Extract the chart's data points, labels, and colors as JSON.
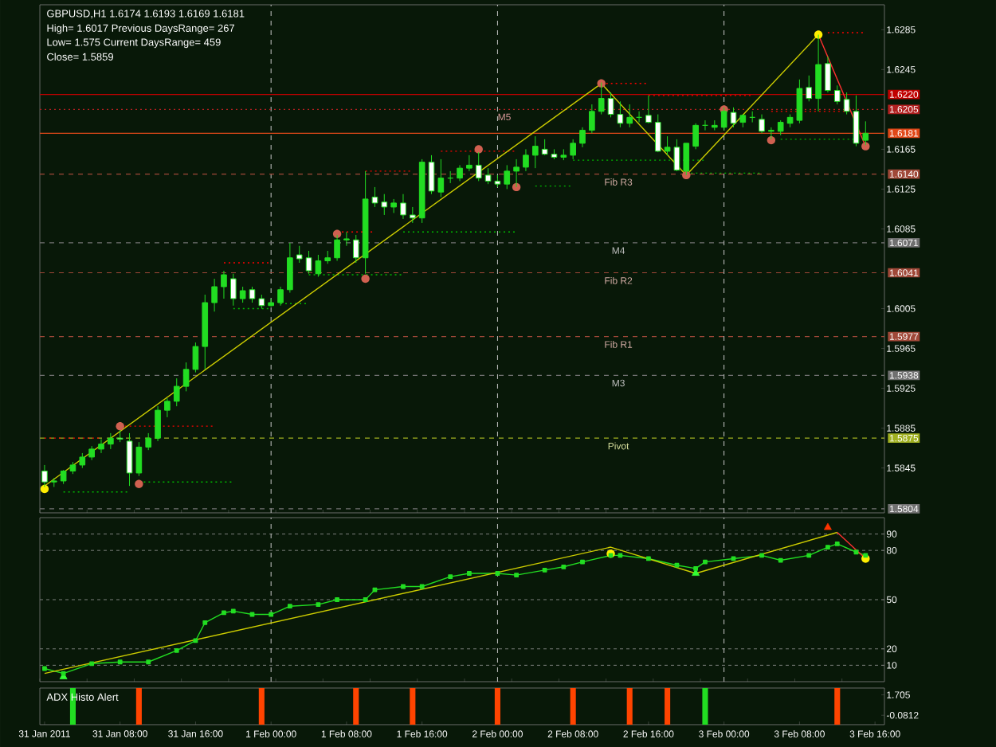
{
  "chart_data": [
    {
      "type": "candlestick",
      "title": "GBPUSD,H1  1.6174 1.6193 1.6169 1.6181",
      "annotations": [
        "High= 1.6017 Previous DaysRange= 267",
        "Low= 1.575 Current DaysRange= 459",
        "Close= 1.5859"
      ],
      "color": "#22dd22",
      "x": [
        "2011-01-31T00:00",
        "2011-01-31T01:00",
        "2011-01-31T02:00",
        "2011-01-31T03:00",
        "2011-01-31T04:00",
        "2011-01-31T05:00",
        "2011-01-31T06:00",
        "2011-01-31T07:00",
        "2011-01-31T08:00",
        "2011-01-31T09:00",
        "2011-01-31T10:00",
        "2011-01-31T11:00",
        "2011-01-31T12:00",
        "2011-01-31T13:00",
        "2011-01-31T14:00",
        "2011-01-31T15:00",
        "2011-01-31T16:00",
        "2011-01-31T17:00",
        "2011-01-31T18:00",
        "2011-01-31T19:00",
        "2011-01-31T20:00",
        "2011-01-31T21:00",
        "2011-01-31T22:00",
        "2011-01-31T23:00",
        "2011-02-01T00:00",
        "2011-02-01T01:00",
        "2011-02-01T02:00",
        "2011-02-01T03:00",
        "2011-02-01T04:00",
        "2011-02-01T05:00",
        "2011-02-01T06:00",
        "2011-02-01T07:00",
        "2011-02-01T08:00",
        "2011-02-01T09:00",
        "2011-02-01T10:00",
        "2011-02-01T11:00",
        "2011-02-01T12:00",
        "2011-02-01T13:00",
        "2011-02-01T14:00",
        "2011-02-01T15:00",
        "2011-02-01T16:00",
        "2011-02-01T17:00",
        "2011-02-01T18:00",
        "2011-02-01T19:00",
        "2011-02-01T20:00",
        "2011-02-01T21:00",
        "2011-02-01T22:00",
        "2011-02-01T23:00",
        "2011-02-02T00:00",
        "2011-02-02T01:00",
        "2011-02-02T02:00",
        "2011-02-02T03:00",
        "2011-02-02T04:00",
        "2011-02-02T05:00",
        "2011-02-02T06:00",
        "2011-02-02T07:00",
        "2011-02-02T08:00",
        "2011-02-02T09:00",
        "2011-02-02T10:00",
        "2011-02-02T11:00",
        "2011-02-02T12:00",
        "2011-02-02T13:00",
        "2011-02-02T14:00",
        "2011-02-02T15:00",
        "2011-02-02T16:00",
        "2011-02-02T17:00",
        "2011-02-02T18:00",
        "2011-02-02T19:00",
        "2011-02-02T20:00",
        "2011-02-02T21:00",
        "2011-02-02T22:00",
        "2011-02-02T23:00",
        "2011-02-03T00:00",
        "2011-02-03T01:00",
        "2011-02-03T02:00",
        "2011-02-03T03:00",
        "2011-02-03T04:00",
        "2011-02-03T05:00",
        "2011-02-03T06:00",
        "2011-02-03T07:00",
        "2011-02-03T08:00",
        "2011-02-03T09:00",
        "2011-02-03T10:00",
        "2011-02-03T11:00",
        "2011-02-03T12:00",
        "2011-02-03T13:00",
        "2011-02-03T14:00",
        "2011-02-03T15:00"
      ],
      "ohlc": [
        [
          1.5842,
          1.5848,
          1.5826,
          1.5831
        ],
        [
          1.5831,
          1.5835,
          1.5826,
          1.5832
        ],
        [
          1.5832,
          1.5843,
          1.5829,
          1.5842
        ],
        [
          1.5842,
          1.5851,
          1.5839,
          1.5848
        ],
        [
          1.5848,
          1.586,
          1.5845,
          1.5856
        ],
        [
          1.5856,
          1.5867,
          1.5853,
          1.5864
        ],
        [
          1.5864,
          1.5874,
          1.586,
          1.5869
        ],
        [
          1.5869,
          1.588,
          1.5864,
          1.5875
        ],
        [
          1.5875,
          1.5883,
          1.5871,
          1.5874
        ],
        [
          1.5872,
          1.588,
          1.5827,
          1.584
        ],
        [
          1.584,
          1.5871,
          1.5837,
          1.5866
        ],
        [
          1.5866,
          1.588,
          1.5863,
          1.5875
        ],
        [
          1.5875,
          1.5907,
          1.5872,
          1.5903
        ],
        [
          1.5903,
          1.5915,
          1.5896,
          1.5912
        ],
        [
          1.5912,
          1.5935,
          1.5907,
          1.5927
        ],
        [
          1.5927,
          1.5951,
          1.5922,
          1.5944
        ],
        [
          1.5944,
          1.5971,
          1.5941,
          1.5967
        ],
        [
          1.5967,
          1.6019,
          1.5944,
          1.6011
        ],
        [
          1.6011,
          1.6035,
          1.6002,
          1.6027
        ],
        [
          1.6027,
          1.6043,
          1.6015,
          1.6039
        ],
        [
          1.6035,
          1.604,
          1.6008,
          1.6015
        ],
        [
          1.6015,
          1.6027,
          1.6011,
          1.6023
        ],
        [
          1.6024,
          1.6027,
          1.6011,
          1.6015
        ],
        [
          1.6015,
          1.6019,
          1.6005,
          1.6008
        ],
        [
          1.6008,
          1.6015,
          1.6007,
          1.6011
        ],
        [
          1.6011,
          1.6027,
          1.6008,
          1.6024
        ],
        [
          1.6024,
          1.6071,
          1.6021,
          1.6056
        ],
        [
          1.6059,
          1.6068,
          1.6051,
          1.6055
        ],
        [
          1.6056,
          1.6063,
          1.604,
          1.6043
        ],
        [
          1.604,
          1.6059,
          1.6037,
          1.6053
        ],
        [
          1.6053,
          1.6063,
          1.605,
          1.6056
        ],
        [
          1.6056,
          1.6079,
          1.6053,
          1.6074
        ],
        [
          1.6074,
          1.6082,
          1.6068,
          1.6075
        ],
        [
          1.6074,
          1.6079,
          1.6051,
          1.6056
        ],
        [
          1.6056,
          1.6143,
          1.604,
          1.6115
        ],
        [
          1.6117,
          1.6127,
          1.6107,
          1.6111
        ],
        [
          1.6112,
          1.612,
          1.6099,
          1.6107
        ],
        [
          1.6107,
          1.6115,
          1.6101,
          1.6111
        ],
        [
          1.6111,
          1.612,
          1.6095,
          1.6099
        ],
        [
          1.6099,
          1.6107,
          1.6091,
          1.6096
        ],
        [
          1.6096,
          1.6155,
          1.6091,
          1.6152
        ],
        [
          1.6152,
          1.6159,
          1.612,
          1.6123
        ],
        [
          1.6122,
          1.6155,
          1.6117,
          1.6136
        ],
        [
          1.6136,
          1.6143,
          1.6131,
          1.6136
        ],
        [
          1.6136,
          1.6149,
          1.6133,
          1.6146
        ],
        [
          1.6146,
          1.6159,
          1.6143,
          1.6149
        ],
        [
          1.6149,
          1.6162,
          1.6133,
          1.6136
        ],
        [
          1.6139,
          1.6146,
          1.613,
          1.6133
        ],
        [
          1.6133,
          1.6139,
          1.6127,
          1.613
        ],
        [
          1.613,
          1.6149,
          1.6125,
          1.6143
        ],
        [
          1.6143,
          1.6155,
          1.6127,
          1.6147
        ],
        [
          1.6147,
          1.6165,
          1.6143,
          1.6159
        ],
        [
          1.6159,
          1.6178,
          1.6146,
          1.6168
        ],
        [
          1.6165,
          1.6175,
          1.6159,
          1.616
        ],
        [
          1.616,
          1.6165,
          1.6155,
          1.6157
        ],
        [
          1.6157,
          1.6165,
          1.6154,
          1.6159
        ],
        [
          1.6159,
          1.6175,
          1.6155,
          1.6171
        ],
        [
          1.6171,
          1.6187,
          1.6167,
          1.6184
        ],
        [
          1.6184,
          1.621,
          1.6181,
          1.6203
        ],
        [
          1.6203,
          1.6232,
          1.62,
          1.6216
        ],
        [
          1.6216,
          1.6222,
          1.6197,
          1.62
        ],
        [
          1.62,
          1.6213,
          1.6187,
          1.6191
        ],
        [
          1.6191,
          1.621,
          1.6187,
          1.6197
        ],
        [
          1.6197,
          1.6203,
          1.6192,
          1.6197
        ],
        [
          1.6199,
          1.6219,
          1.6191,
          1.6192
        ],
        [
          1.6192,
          1.62,
          1.6162,
          1.6163
        ],
        [
          1.6163,
          1.6178,
          1.6159,
          1.6167
        ],
        [
          1.6167,
          1.6175,
          1.6143,
          1.6144
        ],
        [
          1.6143,
          1.6171,
          1.6139,
          1.6171
        ],
        [
          1.6168,
          1.6191,
          1.6165,
          1.6189
        ],
        [
          1.6189,
          1.6194,
          1.6184,
          1.6189
        ],
        [
          1.6187,
          1.6194,
          1.6184,
          1.6189
        ],
        [
          1.6187,
          1.6207,
          1.6184,
          1.6203
        ],
        [
          1.6202,
          1.6207,
          1.6187,
          1.6191
        ],
        [
          1.6192,
          1.62,
          1.6187,
          1.6199
        ],
        [
          1.6197,
          1.6203,
          1.6192,
          1.6197
        ],
        [
          1.6195,
          1.62,
          1.6181,
          1.6183
        ],
        [
          1.6183,
          1.6187,
          1.6175,
          1.6184
        ],
        [
          1.6183,
          1.6194,
          1.6179,
          1.6192
        ],
        [
          1.6191,
          1.62,
          1.6187,
          1.6197
        ],
        [
          1.6194,
          1.6235,
          1.6191,
          1.6226
        ],
        [
          1.6227,
          1.6239,
          1.6213,
          1.6216
        ],
        [
          1.6216,
          1.628,
          1.6203,
          1.625
        ],
        [
          1.6251,
          1.6258,
          1.6222,
          1.6224
        ],
        [
          1.6224,
          1.6229,
          1.621,
          1.6213
        ],
        [
          1.6215,
          1.6222,
          1.62,
          1.6203
        ],
        [
          1.6203,
          1.6219,
          1.6168,
          1.6171
        ],
        [
          1.6174,
          1.6193,
          1.6169,
          1.6181
        ]
      ],
      "xlim": [
        "2011-01-30T23:30",
        "2011-02-03T17:00"
      ],
      "ylim": [
        1.58,
        1.631
      ],
      "yticks": [
        1.6285,
        1.6245,
        {
          "value": 1.622,
          "label": "1.6220"
        },
        1.6205,
        1.6181,
        1.6165,
        {
          "value": 1.614,
          "label": "1.6140"
        },
        1.6125,
        1.6085,
        1.6071,
        1.6041,
        1.6005,
        1.5977,
        1.5965,
        1.5938,
        1.5925,
        1.5885,
        1.5875,
        1.5845,
        1.5804
      ],
      "tick_labels": "y",
      "ref_lines": [
        {
          "axis": "x",
          "value": "2011-02-01T00:00",
          "color": "#c8c8c8",
          "line_style": "dashed"
        },
        {
          "axis": "x",
          "value": "2011-02-02T00:00",
          "color": "#c8c8c8",
          "line_style": "dashed"
        },
        {
          "axis": "x",
          "value": "2011-02-03T00:00",
          "color": "#c8c8c8",
          "line_style": "dashed"
        },
        {
          "axis": "y",
          "value": 1.622,
          "color": "#c00000",
          "line_style": "solid"
        },
        {
          "axis": "y",
          "value": 1.6205,
          "label": "M5",
          "color": "#b02020",
          "line_style": "dotted"
        },
        {
          "axis": "y",
          "value": 1.6181,
          "color": "#e04818",
          "line_style": "solid"
        },
        {
          "axis": "y",
          "value": 1.614,
          "label": "Fib R3",
          "color": "#a04838",
          "line_style": "dashed"
        },
        {
          "axis": "y",
          "value": 1.6071,
          "label": "M4",
          "color": "#707070",
          "line_style": "dashed"
        },
        {
          "axis": "y",
          "value": 1.6041,
          "label": "Fib R2",
          "color": "#a04838",
          "line_style": "dashed"
        },
        {
          "axis": "y",
          "value": 1.5977,
          "label": "Fib R1",
          "color": "#a04838",
          "line_style": "dashed"
        },
        {
          "axis": "y",
          "value": 1.5938,
          "label": "M3",
          "color": "#707070",
          "line_style": "dashed"
        },
        {
          "axis": "y",
          "value": 1.5875,
          "label": "Pivot",
          "color": "#a0b020",
          "line_style": "dashed"
        },
        {
          "axis": "y",
          "value": 1.5804,
          "color": "#707070",
          "line_style": "dashed"
        }
      ],
      "series": [
        {
          "type": "line",
          "color": "#ff0000",
          "line_style": "dotted",
          "x": [
            "2011-01-31T00:00",
            "2011-01-31T06:00"
          ],
          "values": [
            1.5875,
            1.5875
          ]
        },
        {
          "type": "line",
          "color": "#ff0000",
          "line_style": "dotted",
          "x": [
            "2011-01-31T08:00",
            "2011-01-31T18:00"
          ],
          "values": [
            1.5887,
            1.5887
          ]
        },
        {
          "type": "line",
          "color": "#ff0000",
          "line_style": "dotted",
          "x": [
            "2011-01-31T19:00",
            "2011-02-01T00:00"
          ],
          "values": [
            1.6051,
            1.6051
          ]
        },
        {
          "type": "line",
          "color": "#ff0000",
          "line_style": "dotted",
          "x": [
            "2011-02-01T07:00",
            "2011-02-01T11:00"
          ],
          "values": [
            1.6082,
            1.6082
          ]
        },
        {
          "type": "line",
          "color": "#ff0000",
          "line_style": "dotted",
          "x": [
            "2011-02-01T10:00",
            "2011-02-01T15:00"
          ],
          "values": [
            1.6143,
            1.6143
          ]
        },
        {
          "type": "line",
          "color": "#ff0000",
          "line_style": "dotted",
          "x": [
            "2011-02-01T18:00",
            "2011-02-02T02:00"
          ],
          "values": [
            1.6163,
            1.6163
          ]
        },
        {
          "type": "line",
          "color": "#ff0000",
          "line_style": "dotted",
          "x": [
            "2011-02-02T11:00",
            "2011-02-02T16:00"
          ],
          "values": [
            1.6231,
            1.6231
          ]
        },
        {
          "type": "line",
          "color": "#ff0000",
          "line_style": "dotted",
          "x": [
            "2011-02-02T16:00",
            "2011-02-03T03:00"
          ],
          "values": [
            1.6219,
            1.6219
          ]
        },
        {
          "type": "line",
          "color": "#ff0000",
          "line_style": "dotted",
          "x": [
            "2011-02-03T05:00",
            "2011-02-03T13:00"
          ],
          "values": [
            1.6203,
            1.6203
          ]
        },
        {
          "type": "line",
          "color": "#ff0000",
          "line_style": "dotted",
          "x": [
            "2011-02-03T11:00",
            "2011-02-03T15:00"
          ],
          "values": [
            1.6282,
            1.6282
          ]
        },
        {
          "type": "line",
          "color": "#00b800",
          "line_style": "dotted",
          "x": [
            "2011-01-31T02:00",
            "2011-01-31T09:00"
          ],
          "values": [
            1.5821,
            1.5821
          ]
        },
        {
          "type": "line",
          "color": "#00b800",
          "line_style": "dotted",
          "x": [
            "2011-01-31T10:00",
            "2011-01-31T20:00"
          ],
          "values": [
            1.5831,
            1.5831
          ]
        },
        {
          "type": "line",
          "color": "#00b800",
          "line_style": "dotted",
          "x": [
            "2011-01-31T20:00",
            "2011-02-01T00:00"
          ],
          "values": [
            1.6005,
            1.6005
          ]
        },
        {
          "type": "line",
          "color": "#00b800",
          "line_style": "dotted",
          "x": [
            "2011-02-01T01:00",
            "2011-02-01T04:00"
          ],
          "values": [
            1.601,
            1.601
          ]
        },
        {
          "type": "line",
          "color": "#00b800",
          "line_style": "dotted",
          "x": [
            "2011-02-01T04:00",
            "2011-02-01T14:00"
          ],
          "values": [
            1.6039,
            1.6039
          ]
        },
        {
          "type": "line",
          "color": "#00b800",
          "line_style": "dotted",
          "x": [
            "2011-02-01T14:00",
            "2011-02-02T02:00"
          ],
          "values": [
            1.6082,
            1.6082
          ]
        },
        {
          "type": "line",
          "color": "#00b800",
          "line_style": "dotted",
          "x": [
            "2011-02-02T04:00",
            "2011-02-02T08:00"
          ],
          "values": [
            1.6128,
            1.6128
          ]
        },
        {
          "type": "line",
          "color": "#00b800",
          "line_style": "dotted",
          "x": [
            "2011-02-02T08:00",
            "2011-02-02T22:00"
          ],
          "values": [
            1.6154,
            1.6154
          ]
        },
        {
          "type": "line",
          "color": "#00b800",
          "line_style": "dotted",
          "x": [
            "2011-02-02T20:00",
            "2011-02-03T04:00"
          ],
          "values": [
            1.6141,
            1.6141
          ]
        },
        {
          "type": "line",
          "color": "#00b800",
          "line_style": "dotted",
          "x": [
            "2011-02-03T06:00",
            "2011-02-03T14:00"
          ],
          "values": [
            1.6175,
            1.6175
          ]
        },
        {
          "type": "line",
          "color": "#cccc00",
          "x": [
            "2011-01-31T00:00",
            "2011-02-02T11:00",
            "2011-02-02T20:00",
            "2011-02-03T10:00"
          ],
          "values": [
            1.5827,
            1.6231,
            1.6139,
            1.628
          ]
        },
        {
          "type": "line",
          "color": "#ff3030",
          "x": [
            "2011-02-03T10:00",
            "2011-02-03T15:00"
          ],
          "values": [
            1.628,
            1.6168
          ]
        },
        {
          "type": "scatter",
          "color": "#d06050",
          "marker": "circle",
          "x": [
            "2011-01-31T08:00",
            "2011-01-31T10:00",
            "2011-02-01T07:00",
            "2011-02-01T10:00",
            "2011-02-01T22:00",
            "2011-02-02T02:00",
            "2011-02-02T11:00",
            "2011-02-02T20:00",
            "2011-02-03T00:00",
            "2011-02-03T05:00",
            "2011-02-03T15:00"
          ],
          "values": [
            1.5887,
            1.5829,
            1.608,
            1.6035,
            1.6165,
            1.6127,
            1.6231,
            1.6139,
            1.6205,
            1.6174,
            1.6168
          ]
        },
        {
          "type": "scatter",
          "color": "#ffee00",
          "marker": "circle",
          "x": [
            "2011-01-31T00:00",
            "2011-02-03T10:00"
          ],
          "values": [
            1.5824,
            1.628
          ]
        }
      ]
    },
    {
      "type": "line",
      "xlim": [
        "2011-01-30T23:30",
        "2011-02-03T17:00"
      ],
      "ylim": [
        0,
        100
      ],
      "yticks": [
        10,
        20,
        50,
        80,
        90
      ],
      "grid": "y",
      "tick_labels": "y",
      "ref_lines": [
        {
          "axis": "x",
          "value": "2011-02-01T00:00",
          "color": "#c8c8c8",
          "line_style": "dashed"
        },
        {
          "axis": "x",
          "value": "2011-02-02T00:00",
          "color": "#c8c8c8",
          "line_style": "dashed"
        },
        {
          "axis": "x",
          "value": "2011-02-03T00:00",
          "color": "#c8c8c8",
          "line_style": "dashed"
        }
      ],
      "series": [
        {
          "type": "scatter",
          "color": "#33ff33",
          "marker": "triangle",
          "x": [
            "2011-01-31T02:00",
            "2011-02-02T21:00"
          ],
          "values": [
            3,
            66
          ]
        },
        {
          "type": "line",
          "color": "#22dd22",
          "marker": "square",
          "x": [
            "2011-01-31T00:00",
            "2011-01-31T02:00",
            "2011-01-31T05:00",
            "2011-01-31T08:00",
            "2011-01-31T11:00",
            "2011-01-31T14:00",
            "2011-01-31T16:00",
            "2011-01-31T17:00",
            "2011-01-31T19:00",
            "2011-01-31T20:00",
            "2011-01-31T22:00",
            "2011-02-01T00:00",
            "2011-02-01T02:00",
            "2011-02-01T05:00",
            "2011-02-01T07:00",
            "2011-02-01T10:00",
            "2011-02-01T11:00",
            "2011-02-01T14:00",
            "2011-02-01T16:00",
            "2011-02-01T19:00",
            "2011-02-01T21:00",
            "2011-02-02T00:00",
            "2011-02-02T02:00",
            "2011-02-02T05:00",
            "2011-02-02T07:00",
            "2011-02-02T09:00",
            "2011-02-02T12:00",
            "2011-02-02T13:00",
            "2011-02-02T16:00",
            "2011-02-02T19:00",
            "2011-02-02T21:00",
            "2011-02-02T22:00",
            "2011-02-03T01:00",
            "2011-02-03T04:00",
            "2011-02-03T06:00",
            "2011-02-03T09:00",
            "2011-02-03T11:00",
            "2011-02-03T12:00",
            "2011-02-03T14:00",
            "2011-02-03T15:00"
          ],
          "values": [
            8,
            5,
            11,
            12,
            12,
            19,
            25,
            36,
            42,
            43,
            41,
            41,
            46,
            47,
            50,
            50,
            56,
            58,
            58,
            64,
            66,
            66,
            65,
            68,
            70,
            73,
            77,
            77,
            75,
            71,
            69,
            73,
            75,
            77,
            74,
            77,
            82,
            84,
            79,
            77
          ]
        },
        {
          "type": "line",
          "color": "#cccc00",
          "x": [
            "2011-01-31T00:00",
            "2011-02-02T12:00",
            "2011-02-02T21:00",
            "2011-02-03T12:00"
          ],
          "values": [
            5,
            82,
            66,
            91
          ]
        },
        {
          "type": "line",
          "color": "#ff3030",
          "x": [
            "2011-02-03T12:00",
            "2011-02-03T15:00"
          ],
          "values": [
            91,
            75
          ]
        },
        {
          "type": "scatter",
          "color": "#ffee00",
          "marker": "circle",
          "x": [
            "2011-02-02T12:00",
            "2011-02-03T15:00"
          ],
          "values": [
            78,
            75
          ]
        },
        {
          "type": "scatter",
          "color": "#ff3300",
          "marker": "triangle",
          "x": [
            "2011-02-03T11:00"
          ],
          "values": [
            94
          ]
        }
      ]
    },
    {
      "type": "bar",
      "title": "ADX Histo Alert",
      "x": [
        "2011-01-31T03:00",
        "2011-01-31T10:00",
        "2011-01-31T23:00",
        "2011-02-01T09:00",
        "2011-02-01T15:00",
        "2011-02-02T00:00",
        "2011-02-02T08:00",
        "2011-02-02T14:00",
        "2011-02-02T18:00",
        "2011-02-02T22:00",
        "2011-02-03T12:00"
      ],
      "values": [
        3.2,
        3.2,
        3.2,
        3.2,
        3.2,
        3.2,
        3.2,
        3.2,
        3.2,
        3.2,
        3.2
      ],
      "base": [
        -0.9,
        -0.9,
        -0.9,
        -0.9,
        -0.9,
        -0.9,
        -0.9,
        -0.9,
        -0.9,
        -0.9,
        -0.9
      ],
      "colors": [
        "#22dd22",
        "#ff4400",
        "#ff4400",
        "#ff4400",
        "#ff4400",
        "#ff4400",
        "#ff4400",
        "#ff4400",
        "#ff4400",
        "#22dd22",
        "#ff4400"
      ],
      "xlim": [
        "2011-01-30T23:30",
        "2011-02-03T17:00"
      ],
      "xticks": [
        {
          "value": "2011-01-31T00:00",
          "label": "31 Jan 2011"
        },
        {
          "value": "2011-01-31T08:00",
          "label": "31 Jan 08:00"
        },
        {
          "value": "2011-01-31T16:00",
          "label": "31 Jan 16:00"
        },
        {
          "value": "2011-02-01T00:00",
          "label": "1 Feb 00:00"
        },
        {
          "value": "2011-02-01T08:00",
          "label": "1 Feb 08:00"
        },
        {
          "value": "2011-02-01T16:00",
          "label": "1 Feb 16:00"
        },
        {
          "value": "2011-02-02T00:00",
          "label": "2 Feb 00:00"
        },
        {
          "value": "2011-02-02T08:00",
          "label": "2 Feb 08:00"
        },
        {
          "value": "2011-02-02T16:00",
          "label": "2 Feb 16:00"
        },
        {
          "value": "2011-02-03T00:00",
          "label": "3 Feb 00:00"
        },
        {
          "value": "2011-02-03T08:00",
          "label": "3 Feb 08:00"
        },
        {
          "value": "2011-02-03T16:00",
          "label": "3 Feb 16:00"
        }
      ],
      "ylim": [
        -0.9,
        2.3
      ],
      "yticks": [
        -0.0812,
        1.705
      ]
    }
  ]
}
